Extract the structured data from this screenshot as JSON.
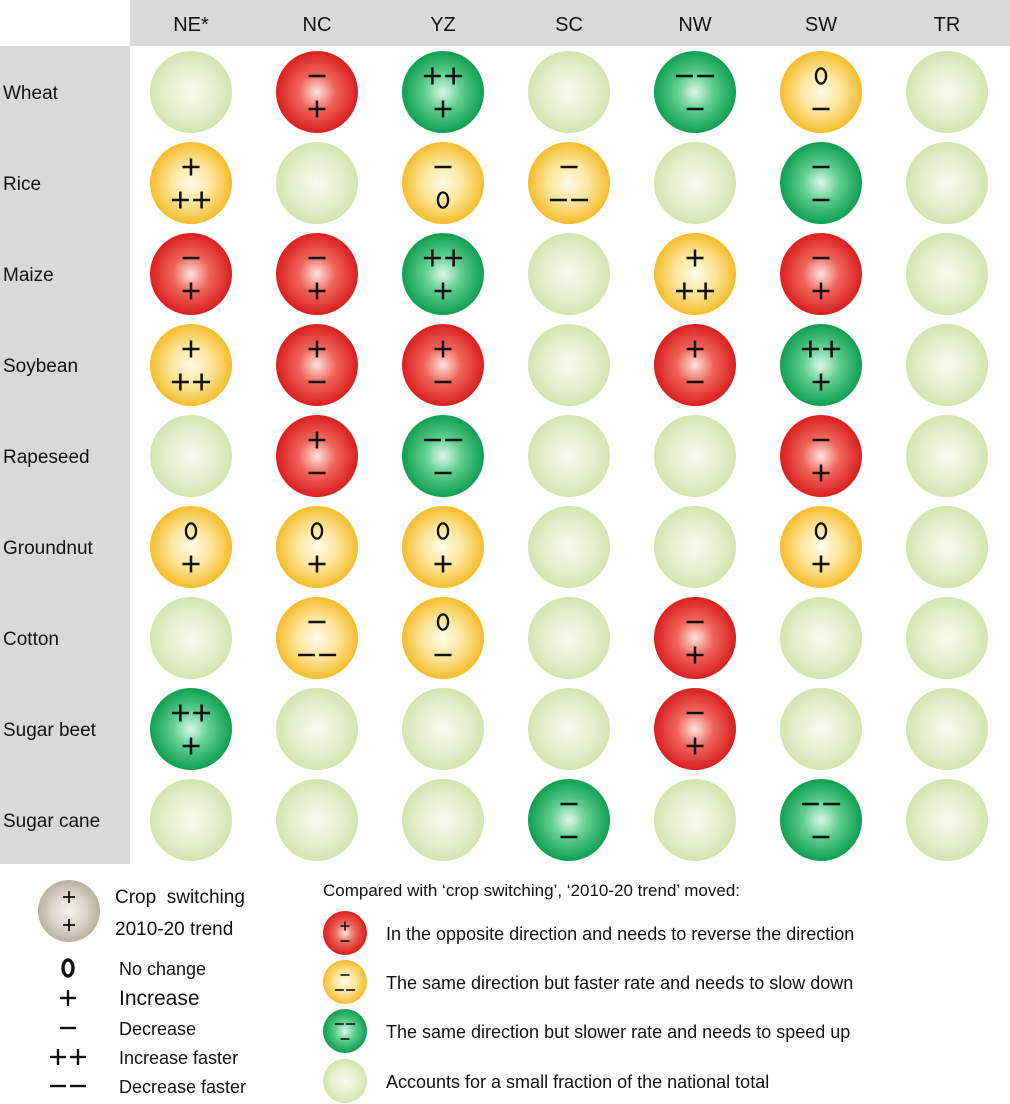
{
  "colors": {
    "header_bg": "#d9d9d9",
    "row_header_bg": "#d9d9d9",
    "red": "#e02828",
    "yellow": "#f5c23a",
    "green": "#15a65a",
    "pale": "#d9eab8",
    "key": "#c2b9a8"
  },
  "chart_data": {
    "type": "table",
    "columns": [
      "NE*",
      "NC",
      "YZ",
      "SC",
      "NW",
      "SW",
      "TR"
    ],
    "rows": [
      "Wheat",
      "Rice",
      "Maize",
      "Soybean",
      "Rapeseed",
      "Groundnut",
      "Cotton",
      "Sugar beet",
      "Sugar cane"
    ],
    "cells": [
      [
        {
          "color": "pale"
        },
        {
          "color": "red",
          "crop_switching": "−",
          "trend": "+"
        },
        {
          "color": "green",
          "crop_switching": "++",
          "trend": "+"
        },
        {
          "color": "pale"
        },
        {
          "color": "green",
          "crop_switching": "−−",
          "trend": "−"
        },
        {
          "color": "yellow",
          "crop_switching": "0",
          "trend": "−"
        },
        {
          "color": "pale"
        }
      ],
      [
        {
          "color": "yellow",
          "crop_switching": "+",
          "trend": "++"
        },
        {
          "color": "pale"
        },
        {
          "color": "yellow",
          "crop_switching": "−",
          "trend": "0"
        },
        {
          "color": "yellow",
          "crop_switching": "−",
          "trend": "−−"
        },
        {
          "color": "pale"
        },
        {
          "color": "green",
          "crop_switching": "−",
          "trend": "−"
        },
        {
          "color": "pale"
        }
      ],
      [
        {
          "color": "red",
          "crop_switching": "−",
          "trend": "+"
        },
        {
          "color": "red",
          "crop_switching": "−",
          "trend": "+"
        },
        {
          "color": "green",
          "crop_switching": "++",
          "trend": "+"
        },
        {
          "color": "pale"
        },
        {
          "color": "yellow",
          "crop_switching": "+",
          "trend": "++"
        },
        {
          "color": "red",
          "crop_switching": "−",
          "trend": "+"
        },
        {
          "color": "pale"
        }
      ],
      [
        {
          "color": "yellow",
          "crop_switching": "+",
          "trend": "++"
        },
        {
          "color": "red",
          "crop_switching": "+",
          "trend": "−"
        },
        {
          "color": "red",
          "crop_switching": "+",
          "trend": "−"
        },
        {
          "color": "pale"
        },
        {
          "color": "red",
          "crop_switching": "+",
          "trend": "−"
        },
        {
          "color": "green",
          "crop_switching": "++",
          "trend": "+"
        },
        {
          "color": "pale"
        }
      ],
      [
        {
          "color": "pale"
        },
        {
          "color": "red",
          "crop_switching": "+",
          "trend": "−"
        },
        {
          "color": "green",
          "crop_switching": "−−",
          "trend": "−"
        },
        {
          "color": "pale"
        },
        {
          "color": "pale"
        },
        {
          "color": "red",
          "crop_switching": "−",
          "trend": "+"
        },
        {
          "color": "pale"
        }
      ],
      [
        {
          "color": "yellow",
          "crop_switching": "0",
          "trend": "+"
        },
        {
          "color": "yellow",
          "crop_switching": "0",
          "trend": "+"
        },
        {
          "color": "yellow",
          "crop_switching": "0",
          "trend": "+"
        },
        {
          "color": "pale"
        },
        {
          "color": "pale"
        },
        {
          "color": "yellow",
          "crop_switching": "0",
          "trend": "+"
        },
        {
          "color": "pale"
        }
      ],
      [
        {
          "color": "pale"
        },
        {
          "color": "yellow",
          "crop_switching": "−",
          "trend": "−−"
        },
        {
          "color": "yellow",
          "crop_switching": "0",
          "trend": "−"
        },
        {
          "color": "pale"
        },
        {
          "color": "red",
          "crop_switching": "−",
          "trend": "+"
        },
        {
          "color": "pale"
        },
        {
          "color": "pale"
        }
      ],
      [
        {
          "color": "green",
          "crop_switching": "++",
          "trend": "+"
        },
        {
          "color": "pale"
        },
        {
          "color": "pale"
        },
        {
          "color": "pale"
        },
        {
          "color": "red",
          "crop_switching": "−",
          "trend": "+"
        },
        {
          "color": "pale"
        },
        {
          "color": "pale"
        }
      ],
      [
        {
          "color": "pale"
        },
        {
          "color": "pale"
        },
        {
          "color": "pale"
        },
        {
          "color": "green",
          "crop_switching": "−",
          "trend": "−"
        },
        {
          "color": "pale"
        },
        {
          "color": "green",
          "crop_switching": "−−",
          "trend": "−"
        },
        {
          "color": "pale"
        }
      ]
    ]
  },
  "legend": {
    "key_top": "+",
    "key_bottom": "+",
    "key_label_top": "Crop  switching",
    "key_label_bottom": "2010-20 trend",
    "symbols": [
      {
        "symbol": "0",
        "label": "No change"
      },
      {
        "symbol": "+",
        "label": "Increase"
      },
      {
        "symbol": "−",
        "label": "Decrease"
      },
      {
        "symbol": "++",
        "label": "Increase faster"
      },
      {
        "symbol": "−−",
        "label": "Decrease faster"
      }
    ],
    "compare_title": "Compared with ‘crop switching’, ‘2010-20 trend’ moved:",
    "categories": [
      {
        "color": "red",
        "top": "+",
        "bottom": "−",
        "label": "In the opposite direction and needs to reverse the direction"
      },
      {
        "color": "yellow",
        "top": "−",
        "bottom": "−−",
        "label": "The same direction but faster rate and needs to slow down"
      },
      {
        "color": "green",
        "top": "−−",
        "bottom": "−",
        "label": "The same direction but slower rate and needs to speed up"
      },
      {
        "color": "pale",
        "top": "",
        "bottom": "",
        "label": "Accounts for a small fraction of the national total"
      }
    ]
  }
}
